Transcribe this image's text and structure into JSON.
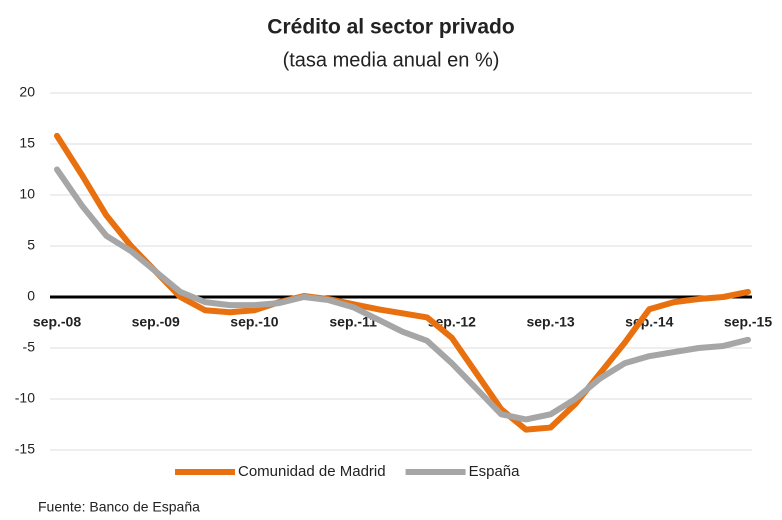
{
  "chart_data": {
    "type": "line",
    "title": "Crédito al sector privado",
    "subtitle": "(tasa media anual en %)",
    "categories": [
      "sep.-08",
      null,
      null,
      null,
      "sep.-09",
      null,
      null,
      null,
      "sep.-10",
      null,
      null,
      null,
      "sep.-11",
      null,
      null,
      null,
      "sep.-12",
      null,
      null,
      null,
      "sep.-13",
      null,
      null,
      null,
      "sep.-14",
      null,
      null,
      null,
      "sep.-15"
    ],
    "series": [
      {
        "name": "Comunidad de Madrid",
        "color": "#e8700f",
        "values": [
          15.8,
          12,
          8,
          5,
          2.5,
          0,
          -1.3,
          -1.5,
          -1.3,
          -0.5,
          0.1,
          -0.2,
          -0.7,
          -1.2,
          -1.6,
          -2,
          -4,
          -7.5,
          -11,
          -13,
          -12.8,
          -10.5,
          -7.5,
          -4.5,
          -1.2,
          -0.5,
          -0.2,
          0,
          0.5
        ]
      },
      {
        "name": "España",
        "color": "#a6a6a6",
        "values": [
          12.5,
          9,
          6,
          4.5,
          2.5,
          0.5,
          -0.5,
          -0.8,
          -0.8,
          -0.6,
          0,
          -0.3,
          -1,
          -2.2,
          -3.4,
          -4.3,
          -6.5,
          -9,
          -11.5,
          -12,
          -11.5,
          -10,
          -8,
          -6.5,
          -5.8,
          -5.4,
          -5,
          -4.8,
          -4.2
        ]
      }
    ],
    "ylim": [
      -15,
      20
    ],
    "yticks": [
      -15,
      -10,
      -5,
      0,
      5,
      10,
      15,
      20
    ],
    "grid": true,
    "source": "Fuente: Banco de España"
  }
}
